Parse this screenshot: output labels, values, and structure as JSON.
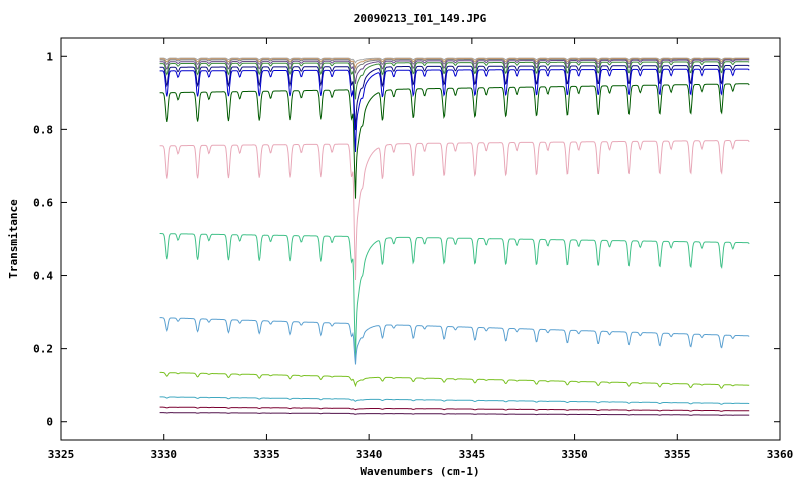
{
  "chart_data": {
    "type": "line",
    "title": "20090213_I01_149.JPG",
    "xlabel": "Wavenumbers (cm-1)",
    "ylabel": "Transmitance",
    "xlim": [
      3325,
      3360
    ],
    "ylim": [
      -0.05,
      1.05
    ],
    "x_ticks": [
      3325,
      3330,
      3335,
      3340,
      3345,
      3350,
      3355,
      3360
    ],
    "y_ticks": [
      0,
      0.2,
      0.4,
      0.6,
      0.8,
      1
    ],
    "x_tick_labels": [
      "3325",
      "3330",
      "3335",
      "3340",
      "3345",
      "3350",
      "3355",
      "3360"
    ],
    "y_tick_labels": [
      "0",
      "0.2",
      "0.4",
      "0.6",
      "0.8",
      "1"
    ],
    "grid": false,
    "legend": "none",
    "x_range_data": [
      3329.8,
      3358.5
    ],
    "big_line_x": 3339.3,
    "periodic_line_spacing": 1.5,
    "series": [
      {
        "color": "#a8a8a8",
        "baseline_start": 0.995,
        "baseline_end": 0.995,
        "dip_small": 0.004,
        "big_dip": 0.01
      },
      {
        "color": "#c89868",
        "baseline_start": 0.993,
        "baseline_end": 0.994,
        "dip_small": 0.008,
        "big_dip": 0.02
      },
      {
        "color": "#7a7a7a",
        "baseline_start": 0.99,
        "baseline_end": 0.992,
        "dip_small": 0.012,
        "big_dip": 0.03
      },
      {
        "color": "#6a4a8a",
        "baseline_start": 0.985,
        "baseline_end": 0.99,
        "dip_small": 0.02,
        "big_dip": 0.05
      },
      {
        "color": "#3a8a3a",
        "baseline_start": 0.98,
        "baseline_end": 0.985,
        "dip_small": 0.03,
        "big_dip": 0.08
      },
      {
        "color": "#0a0a7a",
        "baseline_start": 0.97,
        "baseline_end": 0.975,
        "dip_small": 0.05,
        "big_dip": 0.14
      },
      {
        "color": "#0000cc",
        "baseline_start": 0.96,
        "baseline_end": 0.965,
        "dip_small": 0.07,
        "big_dip": 0.18
      },
      {
        "color": "#005a00",
        "baseline_start": 0.9,
        "baseline_end": 0.925,
        "dip_small": 0.08,
        "big_dip": 0.24
      },
      {
        "color": "#e8a8b8",
        "baseline_start": 0.755,
        "baseline_end": 0.77,
        "dip_small": 0.09,
        "big_dip": 0.3
      },
      {
        "color": "#40c088",
        "baseline_start": 0.515,
        "baseline_end": 0.49,
        "dip_small": 0.07,
        "big_dip": 0.27
      },
      {
        "color": "#5aa0d0",
        "baseline_start": 0.285,
        "baseline_end": 0.235,
        "dip_small": 0.035,
        "big_dip": 0.09
      },
      {
        "color": "#78c020",
        "baseline_start": 0.135,
        "baseline_end": 0.1,
        "dip_small": 0.01,
        "big_dip": 0.02
      },
      {
        "color": "#40a8c0",
        "baseline_start": 0.068,
        "baseline_end": 0.05,
        "dip_small": 0.003,
        "big_dip": 0.005
      },
      {
        "color": "#7a0030",
        "baseline_start": 0.04,
        "baseline_end": 0.03,
        "dip_small": 0.002,
        "big_dip": 0.003
      },
      {
        "color": "#50104a",
        "baseline_start": 0.025,
        "baseline_end": 0.018,
        "dip_small": 0.001,
        "big_dip": 0.002
      }
    ]
  }
}
